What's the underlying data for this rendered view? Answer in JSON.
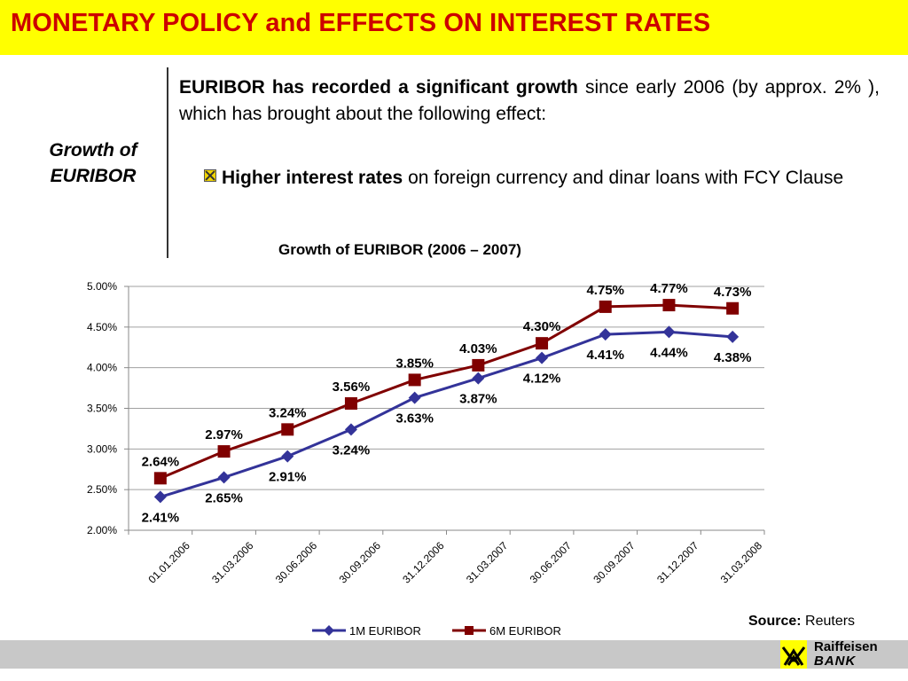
{
  "slide": {
    "title": "MONETARY POLICY and EFFECTS ON INTEREST RATES",
    "side_label": "Growth of EURIBOR",
    "intro_bold": "EURIBOR has recorded a significant growth",
    "intro_rest": " since early 2006 (by approx. 2% ), which has brought about the following effect:",
    "bullet_bold": "Higher interest rates",
    "bullet_rest": " on foreign currency and dinar loans with FCY Clause",
    "source_label": "Source:",
    "source_value": " Reuters",
    "logo_line1": "Raiffeisen",
    "logo_line2": "BANK",
    "colors": {
      "title_bg": "#ffff00",
      "title_text": "#cc0000",
      "footer": "#c8c8c8"
    }
  },
  "chart_data": {
    "type": "line",
    "title": "Growth of EURIBOR (2006 – 2007)",
    "categories": [
      "01.01.2006",
      "31.03.2006",
      "30.06.2006",
      "30.09.2006",
      "31.12.2006",
      "31.03.2007",
      "30.06.2007",
      "30.09.2007",
      "31.12.2007",
      "31.03.2008"
    ],
    "ylim": [
      2.0,
      5.0
    ],
    "yticks": [
      "2.00%",
      "2.50%",
      "3.00%",
      "3.50%",
      "4.00%",
      "4.50%",
      "5.00%"
    ],
    "grid": true,
    "legend": "bottom",
    "series": [
      {
        "name": "1M EURIBOR",
        "color": "#333399",
        "marker": "diamond",
        "values": [
          2.41,
          2.65,
          2.91,
          3.24,
          3.63,
          3.87,
          4.12,
          4.41,
          4.44,
          4.38
        ],
        "labels": [
          "2.41%",
          "2.65%",
          "2.91%",
          "3.24%",
          "3.63%",
          "3.87%",
          "4.12%",
          "4.41%",
          "4.44%",
          "4.38%"
        ]
      },
      {
        "name": "6M EURIBOR",
        "color": "#800000",
        "marker": "square",
        "values": [
          2.64,
          2.97,
          3.24,
          3.56,
          3.85,
          4.03,
          4.3,
          4.75,
          4.77,
          4.73
        ],
        "labels": [
          "2.64%",
          "2.97%",
          "3.24%",
          "3.56%",
          "3.85%",
          "4.03%",
          "4.30%",
          "4.75%",
          "4.77%",
          "4.73%"
        ]
      }
    ]
  }
}
